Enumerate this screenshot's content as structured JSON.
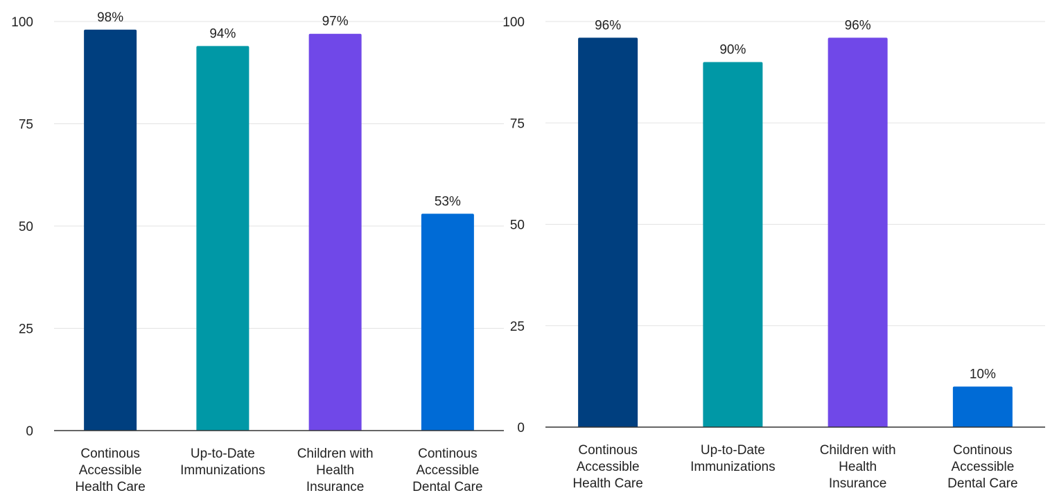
{
  "chart_data": [
    {
      "type": "bar",
      "categories": [
        [
          "Continous",
          "Accessible",
          "Health Care"
        ],
        [
          "Up-to-Date",
          "Immunizations"
        ],
        [
          "Children with",
          "Health",
          "Insurance"
        ],
        [
          "Continous",
          "Accessible",
          "Dental Care"
        ]
      ],
      "values": [
        98,
        94,
        97,
        53
      ],
      "data_labels": [
        "98%",
        "94%",
        "97%",
        "53%"
      ],
      "colors": [
        "#003f7f",
        "#0098a6",
        "#7048e8",
        "#006bd6"
      ],
      "ylim": [
        0,
        100
      ],
      "yticks": [
        0,
        25,
        50,
        75,
        100
      ],
      "grid": true,
      "title": "",
      "xlabel": "",
      "ylabel": ""
    },
    {
      "type": "bar",
      "categories": [
        [
          "Continous",
          "Accessible",
          "Health Care"
        ],
        [
          "Up-to-Date",
          "Immunizations"
        ],
        [
          "Children with",
          "Health",
          "Insurance"
        ],
        [
          "Continous",
          "Accessible",
          "Dental Care"
        ]
      ],
      "values": [
        96,
        90,
        96,
        10
      ],
      "data_labels": [
        "96%",
        "90%",
        "96%",
        "10%"
      ],
      "colors": [
        "#003f7f",
        "#0098a6",
        "#7048e8",
        "#006bd6"
      ],
      "ylim": [
        0,
        100
      ],
      "yticks": [
        0,
        25,
        50,
        75,
        100
      ],
      "grid": true,
      "title": "",
      "xlabel": "",
      "ylabel": ""
    }
  ]
}
